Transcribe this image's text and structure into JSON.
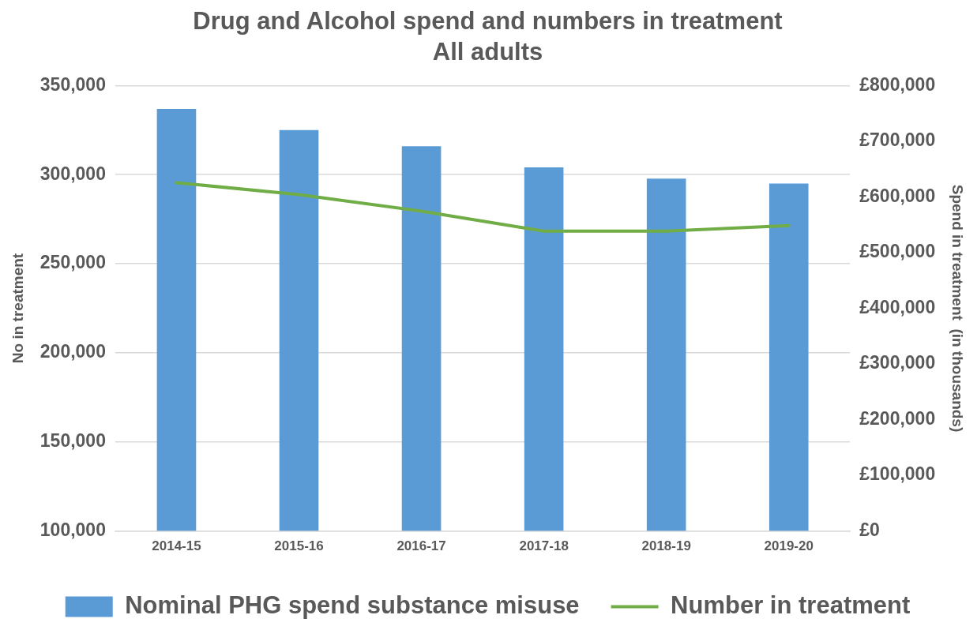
{
  "chart_data": {
    "type": "bar",
    "title": "Drug and Alcohol spend and numbers in treatment",
    "subtitle": "All adults",
    "ylabel": "No in treatment",
    "y2label": "Spend in treatment  (in thousands)",
    "categories": [
      "2014-15",
      "2015-16",
      "2016-17",
      "2017-18",
      "2018-19",
      "2019-20"
    ],
    "series": [
      {
        "name": "Nominal PHG spend substance misuse",
        "axis": "y2",
        "color": "#5b9bd5",
        "values": [
          758000,
          720000,
          691000,
          653000,
          633000,
          624000
        ]
      },
      {
        "name": "Number in treatment",
        "type": "line",
        "axis": "y",
        "color": "#70ad47",
        "values": [
          295500,
          288800,
          279500,
          268300,
          268300,
          271400
        ]
      }
    ],
    "ylim": [
      100000,
      350000
    ],
    "yticks": [
      {
        "value": 100000,
        "label": "100,000"
      },
      {
        "value": 150000,
        "label": "150,000"
      },
      {
        "value": 200000,
        "label": "200,000"
      },
      {
        "value": 250000,
        "label": "250,000"
      },
      {
        "value": 300000,
        "label": "300,000"
      },
      {
        "value": 350000,
        "label": "350,000"
      }
    ],
    "y2lim": [
      0,
      800000
    ],
    "y2ticks": [
      {
        "value": 0,
        "label": "£0"
      },
      {
        "value": 100000,
        "label": "£100,000"
      },
      {
        "value": 200000,
        "label": "£200,000"
      },
      {
        "value": 300000,
        "label": "£300,000"
      },
      {
        "value": 400000,
        "label": "£400,000"
      },
      {
        "value": 500000,
        "label": "£500,000"
      },
      {
        "value": 600000,
        "label": "£600,000"
      },
      {
        "value": 700000,
        "label": "£700,000"
      },
      {
        "value": 800000,
        "label": "£800,000"
      }
    ],
    "grid": "y",
    "legend": "bottom",
    "marker": "none",
    "line_style": "solid"
  }
}
